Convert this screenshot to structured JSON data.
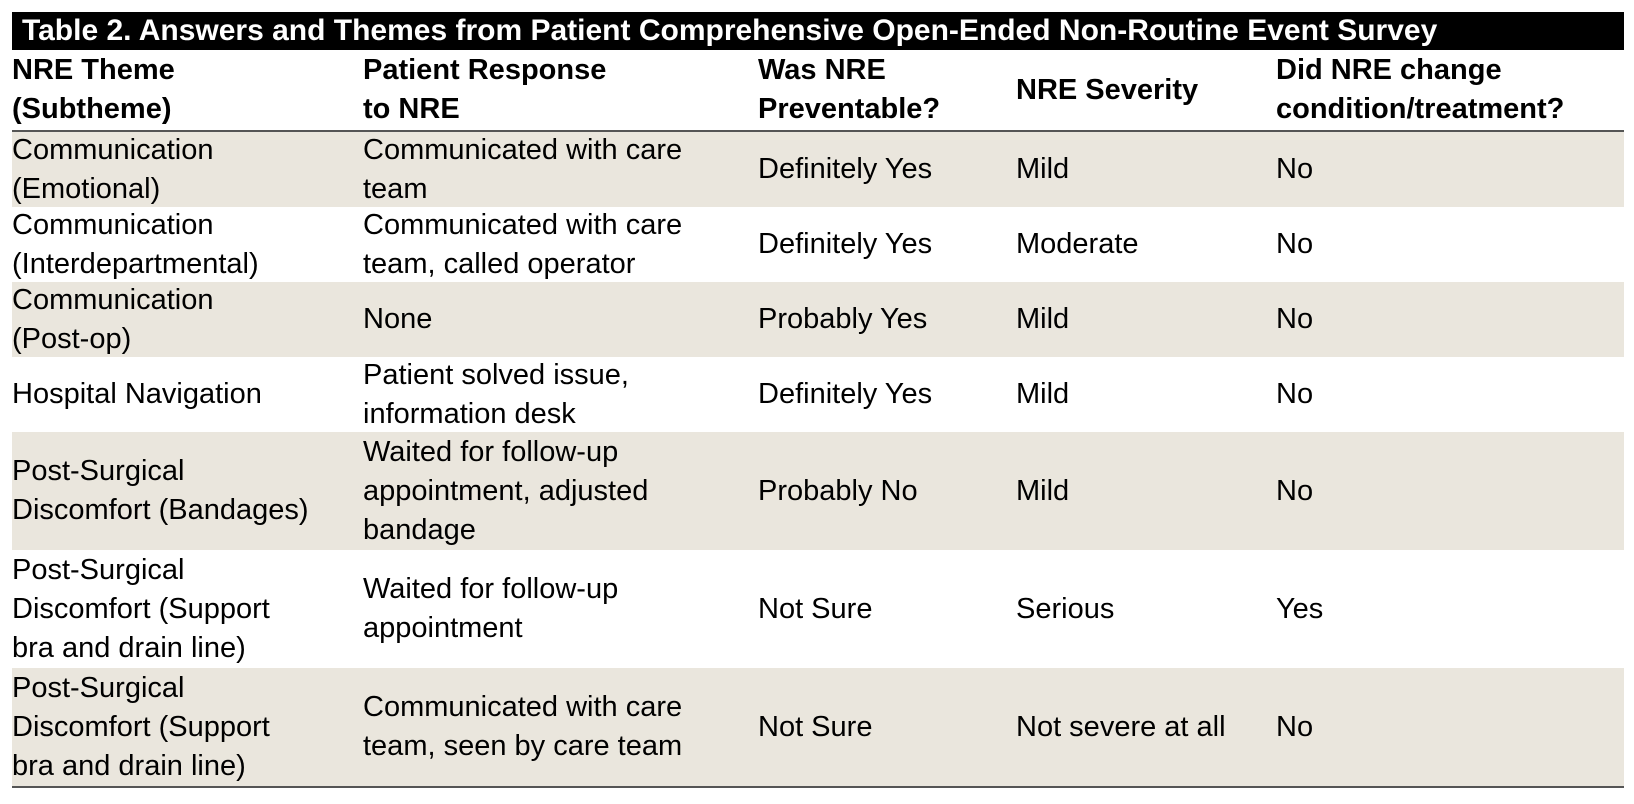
{
  "title": "Table 2. Answers and Themes from Patient Comprehensive Open-Ended Non-Routine Event Survey",
  "headers": [
    "NRE Theme\n(Subtheme)",
    "Patient Response\nto NRE",
    "Was NRE\nPreventable?",
    "NRE Severity",
    "Did NRE change\ncondition/treatment?"
  ],
  "rows": [
    [
      "Communication\n(Emotional)",
      "Communicated with care\nteam",
      "Definitely Yes",
      "Mild",
      "No"
    ],
    [
      "Communication\n(Interdepartmental)",
      "Communicated with care\nteam, called operator",
      "Definitely Yes",
      "Moderate",
      "No"
    ],
    [
      "Communication\n(Post-op)",
      "None",
      "Probably Yes",
      "Mild",
      "No"
    ],
    [
      "Hospital Navigation",
      "Patient solved issue,\ninformation desk",
      "Definitely Yes",
      "Mild",
      "No"
    ],
    [
      "Post-Surgical\nDiscomfort (Bandages)",
      "Waited for follow-up\nappointment, adjusted\nbandage",
      "Probably No",
      "Mild",
      "No"
    ],
    [
      "Post-Surgical\nDiscomfort (Support\nbra and drain line)",
      "Waited for follow-up\nappointment",
      "Not Sure",
      "Serious",
      "Yes"
    ],
    [
      "Post-Surgical\nDiscomfort (Support\nbra and drain line)",
      "Communicated with care\nteam, seen by care team",
      "Not Sure",
      "Not severe at all",
      "No"
    ]
  ]
}
